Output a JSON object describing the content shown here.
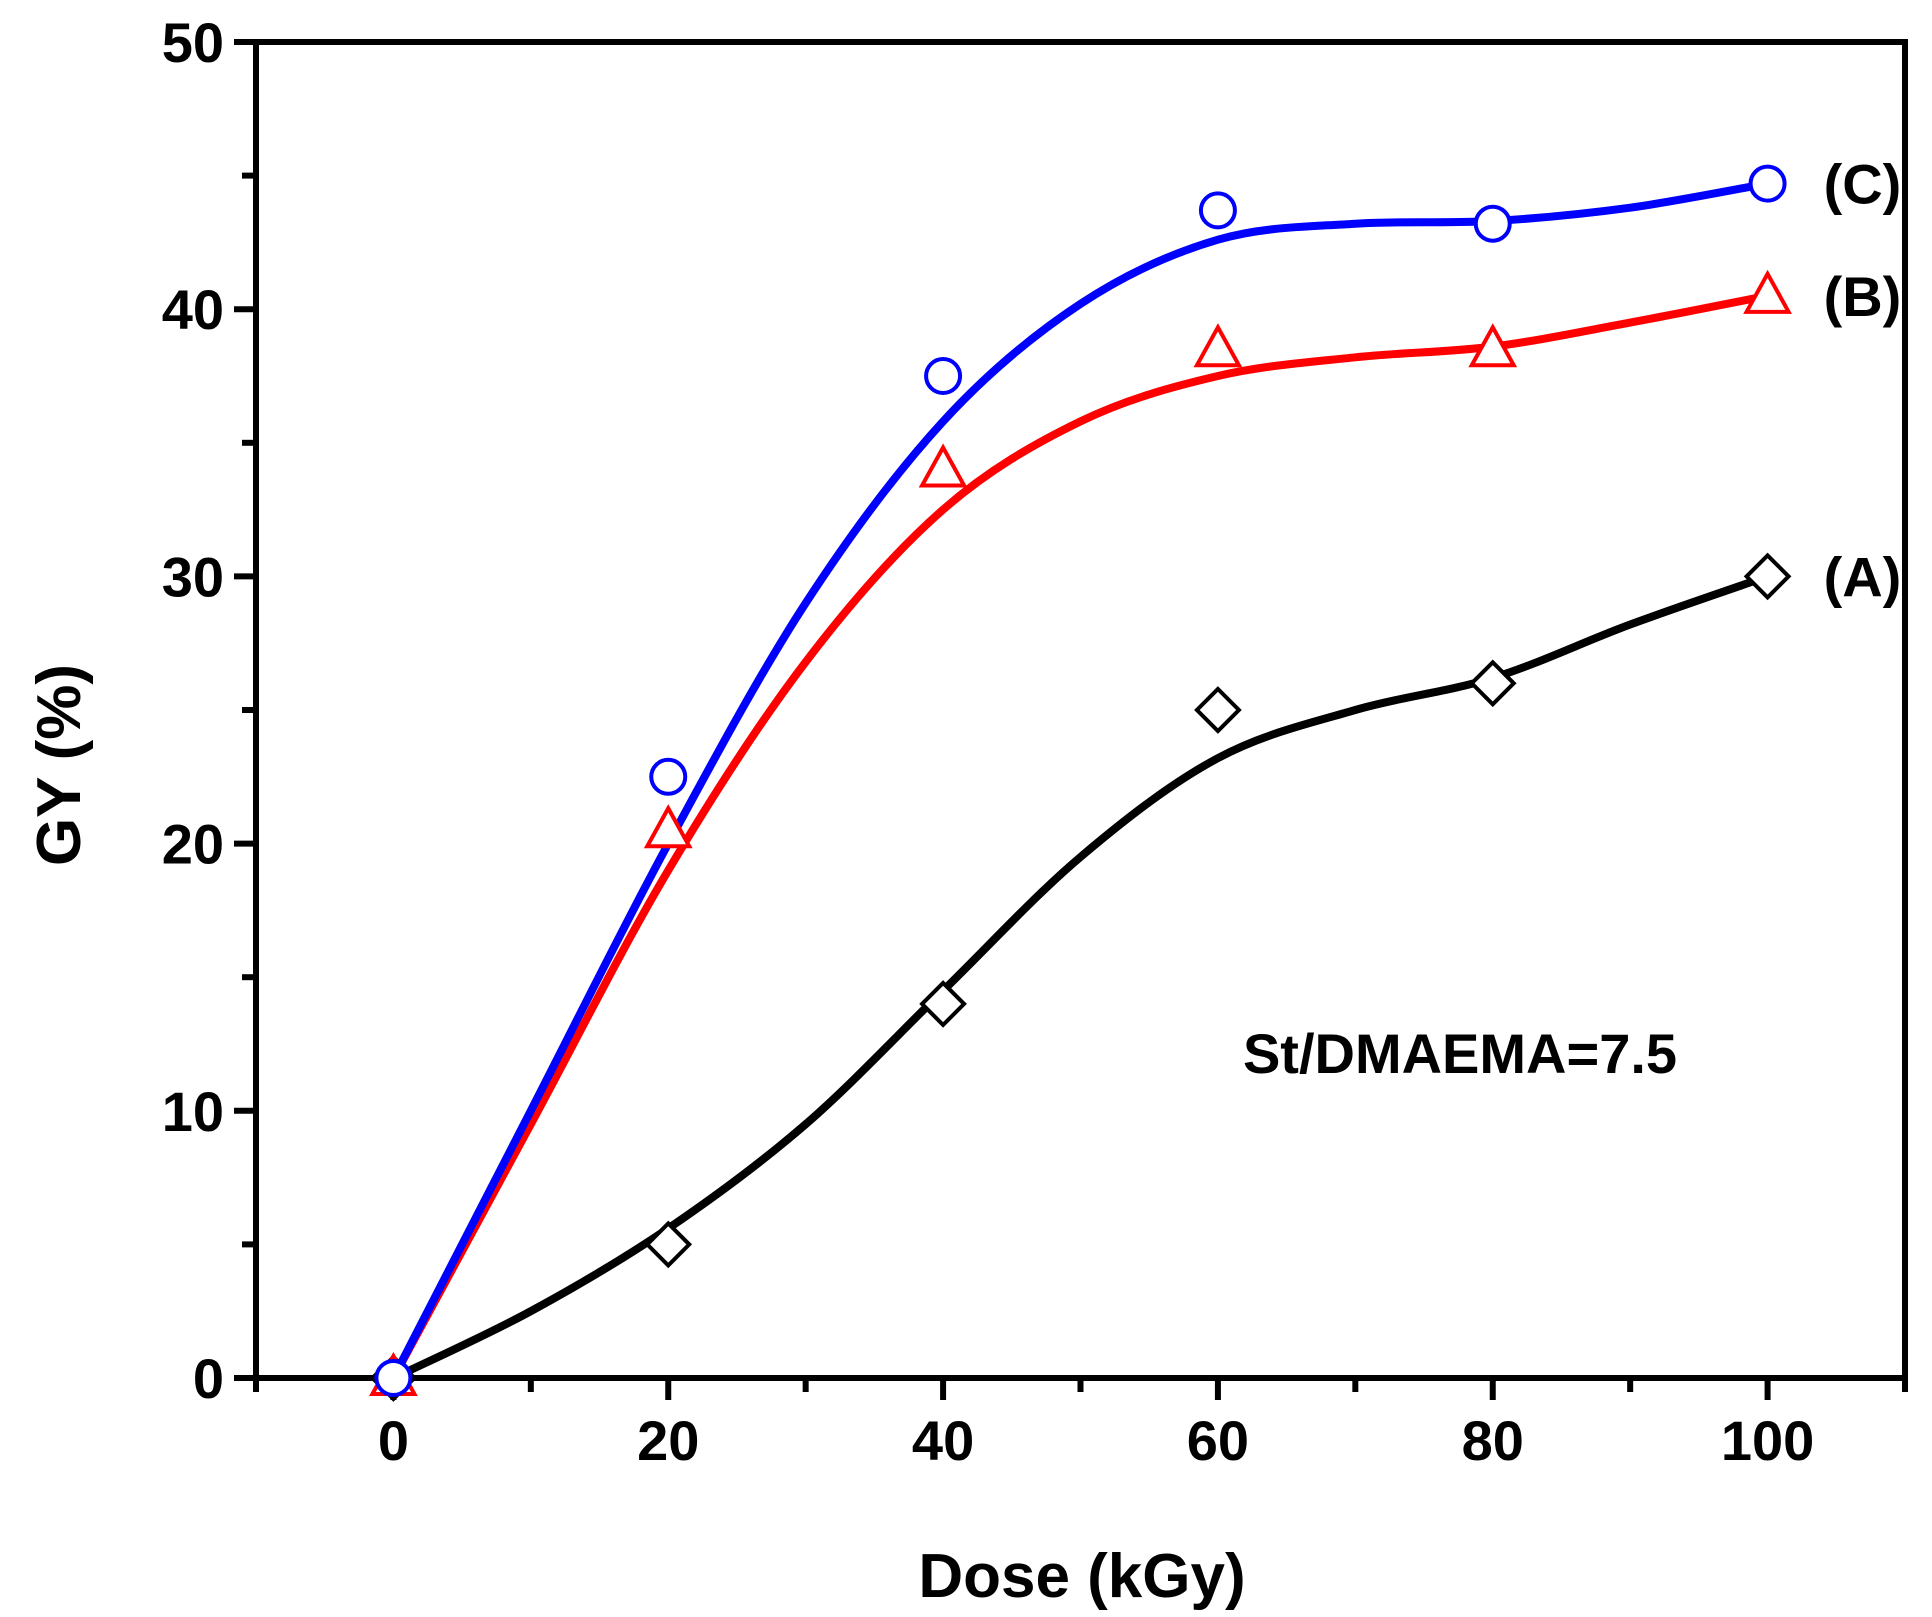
{
  "chart_data": {
    "type": "line",
    "title": "",
    "xlabel": "Dose (kGy)",
    "ylabel": "GY (%)",
    "xlim": [
      -10,
      110
    ],
    "ylim": [
      0,
      50
    ],
    "x_ticks": [
      0,
      20,
      40,
      60,
      80,
      100
    ],
    "y_ticks": [
      0,
      10,
      20,
      30,
      40,
      50
    ],
    "grid": false,
    "annotation": "St/DMAEMA=7.5",
    "x": [
      0,
      20,
      40,
      60,
      80,
      100
    ],
    "series": [
      {
        "name": "(A)",
        "label": "(A)",
        "color": "#000000",
        "marker": "diamond",
        "values": [
          0,
          5,
          14,
          25,
          26,
          30
        ],
        "curve": [
          [
            0,
            0
          ],
          [
            10,
            2.5
          ],
          [
            20,
            5.6
          ],
          [
            30,
            9.5
          ],
          [
            40,
            14.5
          ],
          [
            50,
            19.5
          ],
          [
            60,
            23.2
          ],
          [
            70,
            25
          ],
          [
            80,
            26.2
          ],
          [
            90,
            28.2
          ],
          [
            100,
            30
          ]
        ]
      },
      {
        "name": "(B)",
        "label": "(B)",
        "color": "#ff0000",
        "marker": "triangle",
        "values": [
          0,
          20.5,
          34,
          38.5,
          38.5,
          40.5
        ],
        "curve": [
          [
            0,
            0
          ],
          [
            10,
            9.5
          ],
          [
            20,
            19
          ],
          [
            30,
            26.8
          ],
          [
            40,
            32.5
          ],
          [
            50,
            35.8
          ],
          [
            60,
            37.5
          ],
          [
            70,
            38.2
          ],
          [
            80,
            38.6
          ],
          [
            90,
            39.5
          ],
          [
            100,
            40.5
          ]
        ]
      },
      {
        "name": "(C)",
        "label": "(C)",
        "color": "#0000ff",
        "marker": "circle",
        "values": [
          0,
          22.5,
          37.5,
          43.7,
          43.2,
          44.7
        ],
        "curve": [
          [
            0,
            0
          ],
          [
            10,
            10
          ],
          [
            20,
            20
          ],
          [
            30,
            29
          ],
          [
            40,
            35.8
          ],
          [
            50,
            40.2
          ],
          [
            60,
            42.6
          ],
          [
            70,
            43.2
          ],
          [
            80,
            43.3
          ],
          [
            90,
            43.8
          ],
          [
            100,
            44.7
          ]
        ]
      }
    ]
  }
}
